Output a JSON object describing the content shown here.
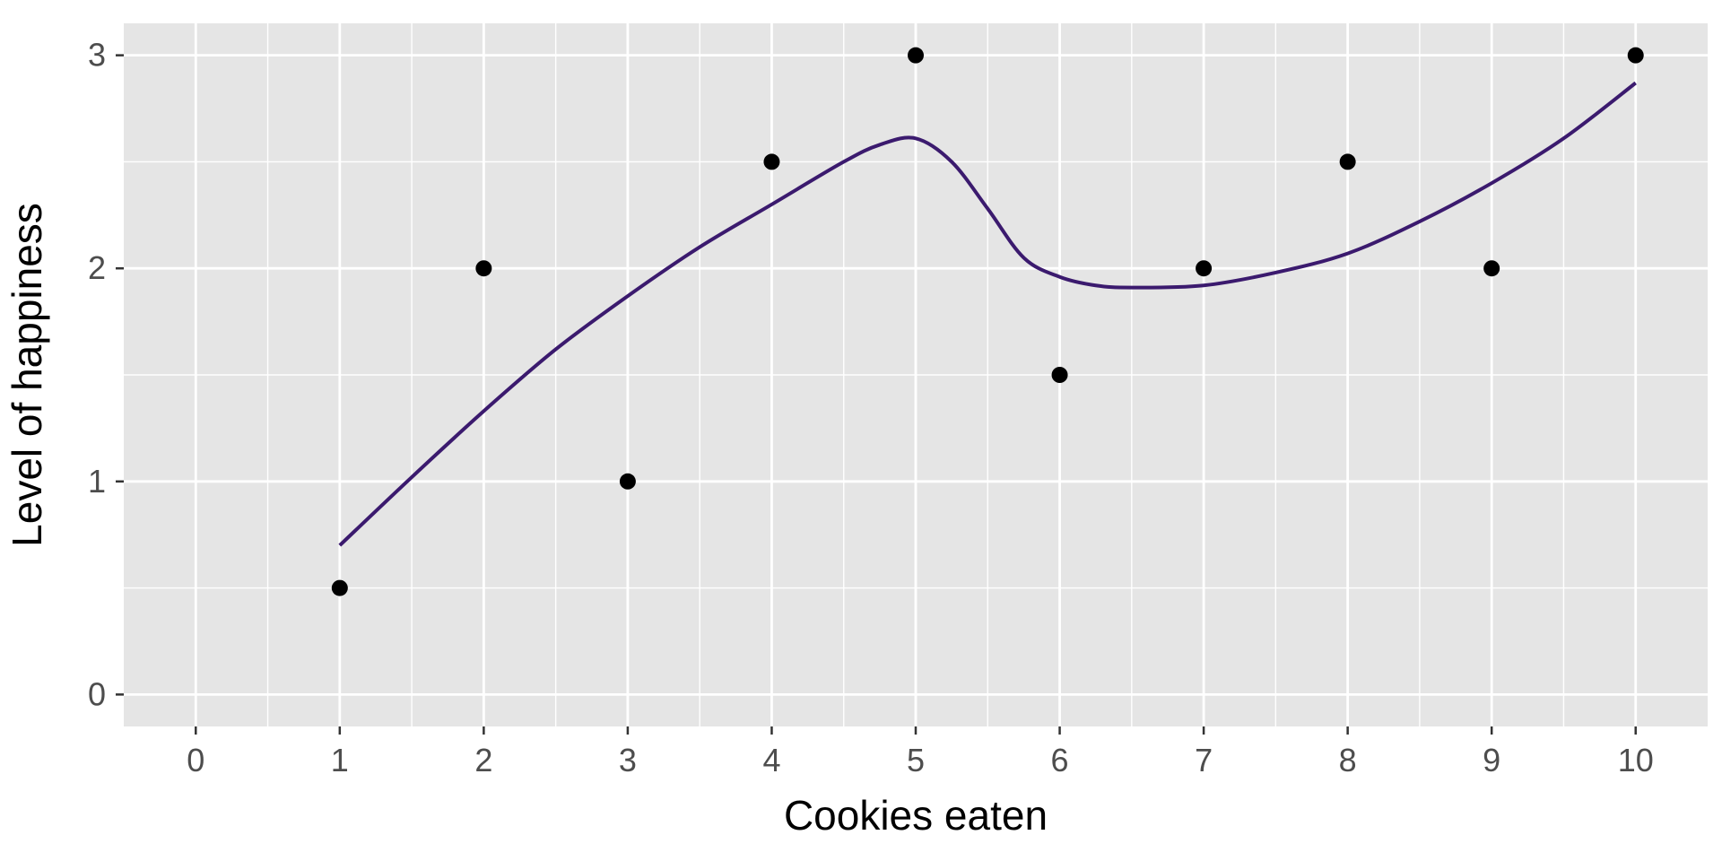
{
  "chart_data": {
    "type": "scatter",
    "title": "",
    "xlabel": "Cookies eaten",
    "ylabel": "Level of happiness",
    "xlim": [
      -0.5,
      10.5
    ],
    "ylim": [
      -0.15,
      3.15
    ],
    "x_ticks": [
      0,
      1,
      2,
      3,
      4,
      5,
      6,
      7,
      8,
      9,
      10
    ],
    "y_ticks": [
      0,
      1,
      2,
      3
    ],
    "grid": true,
    "legend": "none",
    "colors": {
      "panel_background": "#e5e5e5",
      "grid": "#ffffff",
      "points": "#000000",
      "smooth_line": "#3b1a6e",
      "tick_labels": "#4d4d4d"
    },
    "series": [
      {
        "kind": "points",
        "x": [
          1,
          2,
          3,
          4,
          5,
          6,
          7,
          8,
          9,
          10
        ],
        "y": [
          0.5,
          2,
          1,
          2.5,
          3,
          1.5,
          2,
          2.5,
          2,
          3
        ]
      },
      {
        "kind": "smooth-line",
        "x": [
          1,
          1.5,
          2,
          2.5,
          3,
          3.5,
          4,
          4.5,
          4.75,
          5,
          5.25,
          5.5,
          5.75,
          6,
          6.25,
          6.5,
          7,
          7.5,
          8,
          8.5,
          9,
          9.5,
          10
        ],
        "y": [
          0.7,
          1.02,
          1.33,
          1.62,
          1.87,
          2.1,
          2.3,
          2.5,
          2.58,
          2.61,
          2.5,
          2.28,
          2.05,
          1.96,
          1.92,
          1.91,
          1.92,
          1.98,
          2.07,
          2.22,
          2.4,
          2.61,
          2.87
        ]
      }
    ]
  }
}
